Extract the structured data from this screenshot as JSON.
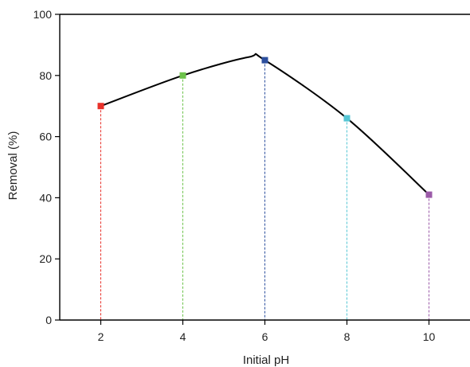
{
  "chart_data": {
    "type": "line",
    "title": "",
    "xlabel": "Initial pH",
    "ylabel": "Removal (%)",
    "xlim": [
      1,
      11
    ],
    "ylim": [
      0,
      100
    ],
    "x_ticks": [
      2,
      4,
      6,
      8,
      10
    ],
    "y_ticks": [
      0,
      20,
      40,
      60,
      80,
      100
    ],
    "grid": false,
    "series": [
      {
        "x": [
          2,
          4,
          6,
          8,
          10
        ],
        "values": [
          70,
          80,
          85,
          66,
          41
        ],
        "marker": "square",
        "point_colors": [
          "#e8312a",
          "#6cc24a",
          "#2c4f9e",
          "#56c6d4",
          "#9b5aa8"
        ]
      }
    ],
    "curve_peak": {
      "x": 5.6,
      "y": 86
    }
  }
}
